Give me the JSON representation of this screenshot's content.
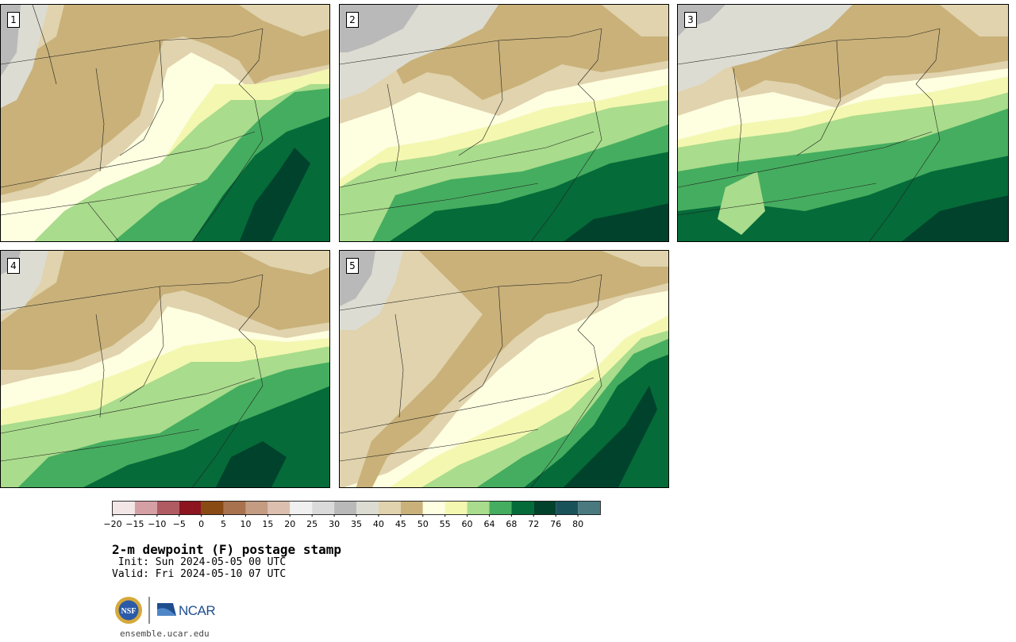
{
  "panels": [
    {
      "label": "1"
    },
    {
      "label": "2"
    },
    {
      "label": "3"
    },
    {
      "label": "4"
    },
    {
      "label": "5"
    }
  ],
  "colorbar": {
    "ticks": [
      "−20",
      "−15",
      "−10",
      "−5",
      "0",
      "5",
      "10",
      "15",
      "20",
      "25",
      "30",
      "35",
      "40",
      "45",
      "50",
      "55",
      "60",
      "64",
      "68",
      "72",
      "76",
      "80"
    ],
    "colors": [
      "#f2e6e6",
      "#d4a0a6",
      "#b05a62",
      "#8c1520",
      "#8a4a14",
      "#a8724e",
      "#c39c82",
      "#dcbfae",
      "#f0f0f0",
      "#dadada",
      "#b9b9b9",
      "#dcdcd2",
      "#e0d3ad",
      "#c9b179",
      "#fefee0",
      "#f4f7b0",
      "#a9dc8c",
      "#45ad5f",
      "#056b39",
      "#00422b",
      "#1a525a",
      "#4a7a80"
    ]
  },
  "text": {
    "title": "2-m dewpoint (F) postage stamp",
    "init": " Init: Sun 2024-05-05 00 UTC",
    "valid": "Valid: Fri 2024-05-10 07 UTC",
    "logo_left": "NSF",
    "logo_right": "NCAR",
    "site": "ensemble.ucar.edu"
  },
  "map_colors": {
    "gray": "#b9b9b9",
    "lightgray": "#dcdcd2",
    "tan": "#e0d3ad",
    "brown": "#c9b179",
    "cream": "#fefee0",
    "yellow": "#f4f7b0",
    "lightgreen": "#a9dc8c",
    "green": "#45ad5f",
    "darkgreen": "#056b39",
    "darkest": "#00422b"
  }
}
